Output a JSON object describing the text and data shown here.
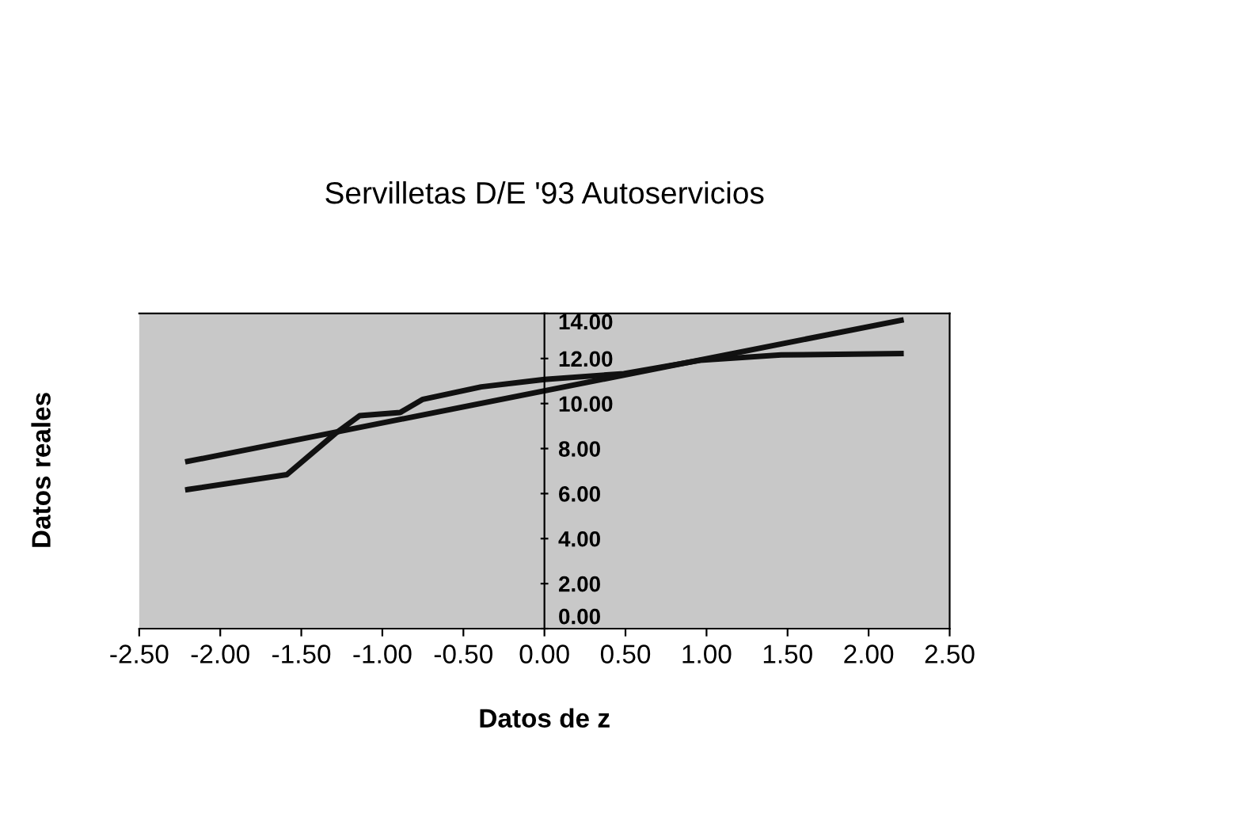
{
  "chart_data": {
    "type": "line",
    "title": "Servilletas D/E '93 Autoservicios",
    "xlabel": "Datos de z",
    "ylabel": "Datos reales",
    "xlim": [
      -2.5,
      2.5
    ],
    "ylim": [
      0,
      14
    ],
    "xticks": [
      {
        "value": -2.5,
        "label": "-2.50"
      },
      {
        "value": -2,
        "label": "-2.00"
      },
      {
        "value": -1.5,
        "label": "-1.50"
      },
      {
        "value": -1,
        "label": "-1.00"
      },
      {
        "value": -0.5,
        "label": "-0.50"
      },
      {
        "value": 0,
        "label": "0.00"
      },
      {
        "value": 0.5,
        "label": "0.50"
      },
      {
        "value": 1,
        "label": "1.00"
      },
      {
        "value": 1.5,
        "label": "1.50"
      },
      {
        "value": 2,
        "label": "2.00"
      },
      {
        "value": 2.5,
        "label": "2.50"
      }
    ],
    "yticks": [
      {
        "value": 0,
        "label": "0.00"
      },
      {
        "value": 2,
        "label": "2.00"
      },
      {
        "value": 4,
        "label": "4.00"
      },
      {
        "value": 6,
        "label": "6.00"
      },
      {
        "value": 8,
        "label": "8.00"
      },
      {
        "value": 10,
        "label": "10.00"
      },
      {
        "value": 12,
        "label": "12.00"
      },
      {
        "value": 14,
        "label": "14.00"
      }
    ],
    "grid": false,
    "legend": false,
    "marker": "none",
    "line_style": "solid",
    "series": [
      {
        "color": "#111111",
        "x": [
          -2.2,
          -1.59,
          -1.29,
          -1.14,
          -0.89,
          -0.75,
          -0.39,
          0,
          0.49,
          0.96,
          1.46,
          2.2
        ],
        "values": [
          6.18,
          6.84,
          8.67,
          9.46,
          9.6,
          10.19,
          10.74,
          11.07,
          11.33,
          11.92,
          12.16,
          12.22
        ]
      },
      {
        "color": "#111111",
        "x": [
          -2.2,
          2.2
        ],
        "values": [
          7.43,
          13.7
        ]
      }
    ]
  }
}
